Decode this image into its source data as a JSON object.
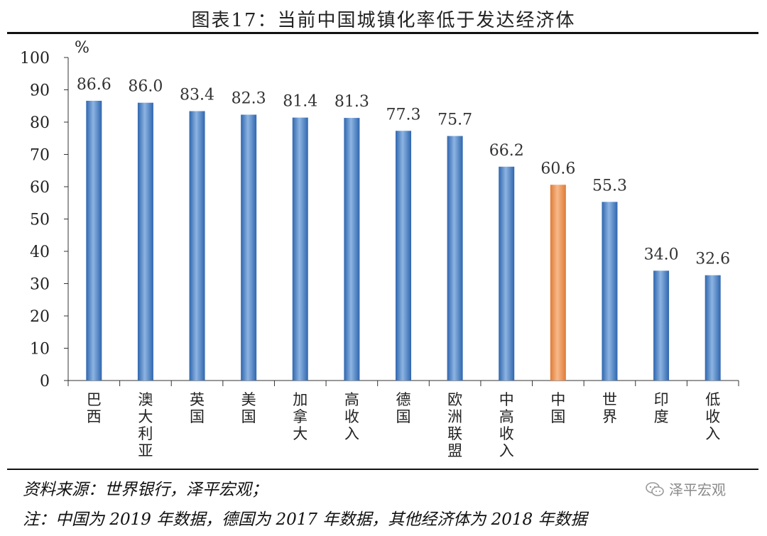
{
  "title": "图表17：当前中国城镇化率低于发达经济体",
  "source": "资料来源：世界银行，泽平宏观；",
  "note": "注：中国为 2019 年数据，德国为 2017 年数据，其他经济体为 2018 年数据",
  "watermark": "泽平宏观",
  "watermark_icon": "wechat-icon",
  "colors": {
    "bar": "#4a7fc0",
    "highlight": "#ee8a45",
    "axis": "#333333"
  },
  "chart_data": {
    "type": "bar",
    "unit": "%",
    "ylim": [
      0,
      100
    ],
    "yticks": [
      0,
      10,
      20,
      30,
      40,
      50,
      60,
      70,
      80,
      90,
      100
    ],
    "highlight": "中国",
    "categories": [
      "巴西",
      "澳大利亚",
      "英国",
      "美国",
      "加拿大",
      "高收入",
      "德国",
      "欧洲联盟",
      "中高收入",
      "中国",
      "世界",
      "印度",
      "低收入"
    ],
    "values": [
      86.6,
      86.0,
      83.4,
      82.3,
      81.4,
      81.3,
      77.3,
      75.7,
      66.2,
      60.6,
      55.3,
      34.0,
      32.6
    ],
    "data_labels": [
      "86.6",
      "86.0",
      "83.4",
      "82.3",
      "81.4",
      "81.3",
      "77.3",
      "75.7",
      "66.2",
      "60.6",
      "55.3",
      "34.0",
      "32.6"
    ]
  }
}
